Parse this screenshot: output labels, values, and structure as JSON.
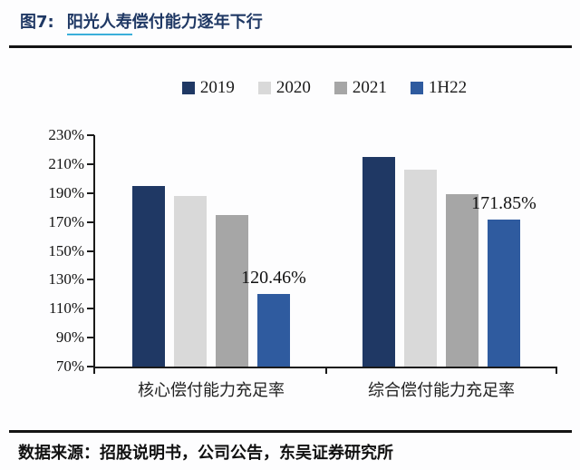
{
  "figure": {
    "label": "图7:",
    "title_linked": "阳光人寿",
    "title_rest": "偿付能力逐年下行"
  },
  "chart_data": {
    "type": "bar",
    "title": "阳光人寿偿付能力逐年下行",
    "categories": [
      "核心偿付能力充足率",
      "综合偿付能力充足率"
    ],
    "series": [
      {
        "name": "2019",
        "color": "#1F3864",
        "values": [
          195,
          215
        ]
      },
      {
        "name": "2020",
        "color": "#D9D9D9",
        "values": [
          188,
          206
        ]
      },
      {
        "name": "2021",
        "color": "#A6A6A6",
        "values": [
          175,
          189
        ]
      },
      {
        "name": "1H22",
        "color": "#2F5B9F",
        "values": [
          120.46,
          171.85
        ],
        "labels": [
          "120.46%",
          "171.85%"
        ]
      }
    ],
    "ylim": [
      70,
      230
    ],
    "ytick_step": 20,
    "ytick_labels": [
      "230%",
      "210%",
      "190%",
      "170%",
      "150%",
      "130%",
      "110%",
      "90%",
      "70%"
    ],
    "grid": false,
    "legend_position": "top",
    "accent_underline_color": "#3BAFDA",
    "title_color": "#1F3864"
  },
  "footer": {
    "source_text": "数据来源：招股说明书，公司公告，东吴证券研究所"
  }
}
